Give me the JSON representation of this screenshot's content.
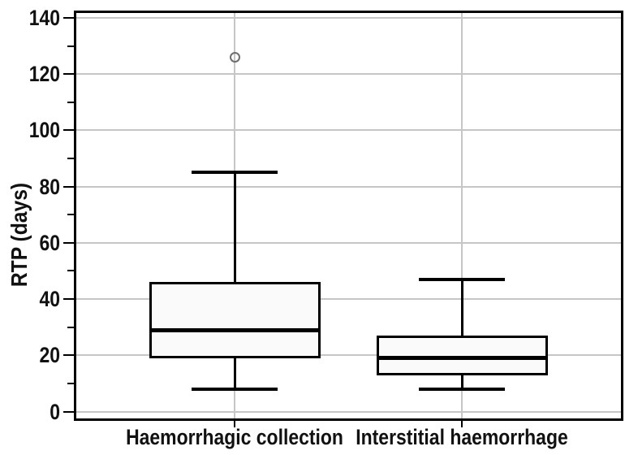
{
  "chart_data": {
    "type": "boxplot",
    "title": "",
    "xlabel": "",
    "ylabel": "RTP (days)",
    "ylim": [
      -3,
      143
    ],
    "yticks_major": [
      0,
      20,
      40,
      60,
      80,
      100,
      120,
      140
    ],
    "yticks_minor": [
      10,
      30,
      50,
      70,
      90,
      110,
      130
    ],
    "grid": "horizontal major gridlines plus one vertical gridline per category, light gray, framed plot area",
    "legend": "none",
    "categories": [
      "Haemorrhagic collection",
      "Interstitial haemorrhage"
    ],
    "series": [
      {
        "category": "Haemorrhagic collection",
        "whisker_low": 8,
        "q1": 19,
        "median": 29,
        "q3": 46,
        "whisker_high": 85,
        "outliers": [
          126
        ]
      },
      {
        "category": "Interstitial haemorrhage",
        "whisker_low": 8,
        "q1": 13,
        "median": 19,
        "q3": 27,
        "whisker_high": 47,
        "outliers": []
      }
    ],
    "colors": {
      "background": "#ffffff",
      "line": "#000000",
      "box_fill": "#fafafa",
      "grid": "#c6c6c6",
      "outlier_stroke": "#6e6e6e",
      "text": "#111111"
    }
  }
}
